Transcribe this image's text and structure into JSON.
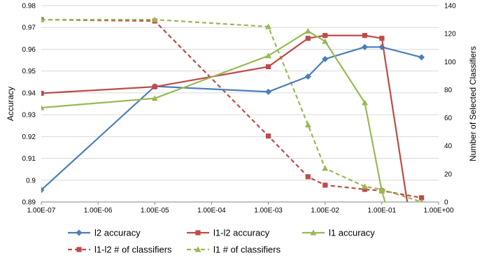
{
  "chart_data": {
    "type": "line",
    "x_scale": "log",
    "x_ticks": [
      "1.00E-07",
      "1.00E-06",
      "1.00E-05",
      "1.00E-04",
      "1.00E-03",
      "1.00E-02",
      "1.00E-01",
      "1.00E+00"
    ],
    "ylabel": "Accuracy",
    "y_ticks": [
      "0.89",
      "0.9",
      "0.91",
      "0.92",
      "0.93",
      "0.94",
      "0.95",
      "0.96",
      "0.97",
      "0.98"
    ],
    "ylim": [
      0.89,
      0.98
    ],
    "y2label": "Number of Selected Classifiers",
    "y2_ticks": [
      "0",
      "20",
      "40",
      "60",
      "80",
      "100",
      "120",
      "140"
    ],
    "y2lim": [
      0,
      140
    ],
    "grid": true,
    "legend_position": "bottom",
    "series": [
      {
        "name": "l2 accuracy",
        "axis": "left",
        "color": "#4a7ebb",
        "dash": false,
        "marker": "diamond",
        "x": [
          1e-07,
          1e-05,
          0.001,
          0.005,
          0.01,
          0.05,
          0.1,
          0.5
        ],
        "y": [
          0.8955,
          0.943,
          0.9405,
          0.9475,
          0.9555,
          0.961,
          0.961,
          0.9563
        ]
      },
      {
        "name": "l1-l2 accuracy",
        "axis": "left",
        "color": "#be4b48",
        "dash": false,
        "marker": "square",
        "x": [
          1e-07,
          1e-05,
          0.001,
          0.005,
          0.01,
          0.05,
          0.1,
          0.3
        ],
        "y": [
          0.9398,
          0.9428,
          0.952,
          0.965,
          0.9663,
          0.9663,
          0.965,
          0.885
        ]
      },
      {
        "name": "l1 accuracy",
        "axis": "left",
        "color": "#98b954",
        "dash": false,
        "marker": "triangle",
        "x": [
          1e-07,
          1e-05,
          0.001,
          0.005,
          0.01,
          0.05,
          0.1,
          0.13
        ],
        "y": [
          0.9332,
          0.9375,
          0.957,
          0.9683,
          0.9636,
          0.9355,
          0.895,
          0.885
        ]
      },
      {
        "name": "l1-l2 # of classifiers",
        "axis": "right",
        "color": "#be4b48",
        "dash": true,
        "marker": "square",
        "x": [
          1e-07,
          1e-05,
          0.001,
          0.005,
          0.01,
          0.05,
          0.1,
          0.5
        ],
        "y": [
          130,
          129,
          47,
          18,
          12,
          9,
          8,
          3
        ]
      },
      {
        "name": "l1 # of classifiers",
        "axis": "right",
        "color": "#98b954",
        "dash": true,
        "marker": "triangle",
        "x": [
          1e-07,
          1e-05,
          0.001,
          0.005,
          0.01,
          0.05,
          0.1,
          0.5
        ],
        "y": [
          130,
          130,
          125,
          55,
          24,
          11,
          9,
          0
        ]
      }
    ]
  }
}
